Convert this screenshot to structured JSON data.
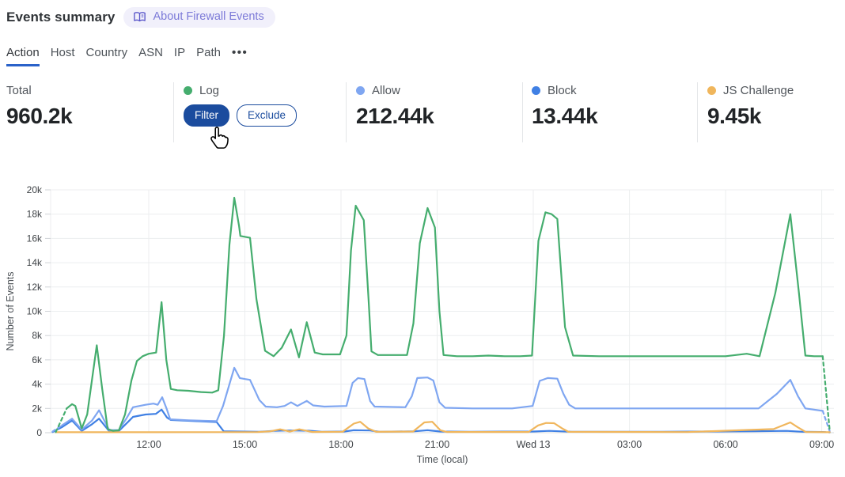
{
  "header": {
    "title": "Events summary",
    "badge": {
      "label": "About Firewall Events",
      "icon": "book-icon"
    }
  },
  "tabs": {
    "items": [
      {
        "label": "Action",
        "active": true
      },
      {
        "label": "Host"
      },
      {
        "label": "Country"
      },
      {
        "label": "ASN"
      },
      {
        "label": "IP"
      },
      {
        "label": "Path"
      },
      {
        "label": "•••"
      }
    ]
  },
  "stats": {
    "total": {
      "label": "Total",
      "value": "960.2k"
    },
    "series": [
      {
        "label": "Log",
        "color": "#45ad6e",
        "filter_label": "Filter",
        "exclude_label": "Exclude"
      },
      {
        "label": "Allow",
        "color": "#7fa6f1",
        "value": "212.44k"
      },
      {
        "label": "Block",
        "color": "#4080e4",
        "value": "13.44k"
      },
      {
        "label": "JS Challenge",
        "color": "#f0b65c",
        "value": "9.45k"
      }
    ]
  },
  "cursor": {
    "icon": "hand-pointer-icon",
    "over": "filter-button"
  },
  "chart_data": {
    "type": "line",
    "title": "",
    "xlabel": "Time (local)",
    "ylabel": "Number of Events",
    "ylim": [
      0,
      20000
    ],
    "grid": true,
    "legend_position": "stats-row-above-chart",
    "x_unit": "hours relative to Wed 13 00:00 (local)",
    "x_domain_hours": [
      -15.06,
      9.38
    ],
    "x_ticks": [
      {
        "h": -12,
        "label": "12:00"
      },
      {
        "h": -9,
        "label": "15:00"
      },
      {
        "h": -6,
        "label": "18:00"
      },
      {
        "h": -3,
        "label": "21:00"
      },
      {
        "h": 0,
        "label": "Wed 13"
      },
      {
        "h": 3,
        "label": "03:00"
      },
      {
        "h": 6,
        "label": "06:00"
      },
      {
        "h": 9,
        "label": "09:00"
      }
    ],
    "y_ticks": [
      {
        "v": 0,
        "label": "0"
      },
      {
        "v": 2000,
        "label": "2k"
      },
      {
        "v": 4000,
        "label": "4k"
      },
      {
        "v": 6000,
        "label": "6k"
      },
      {
        "v": 8000,
        "label": "8k"
      },
      {
        "v": 10000,
        "label": "10k"
      },
      {
        "v": 12000,
        "label": "12k"
      },
      {
        "v": 14000,
        "label": "14k"
      },
      {
        "v": 16000,
        "label": "16k"
      },
      {
        "v": 18000,
        "label": "18k"
      },
      {
        "v": 20000,
        "label": "20k"
      }
    ],
    "series": [
      {
        "name": "Log",
        "color": "#45ad6e",
        "dashed_start": 1,
        "dashed_end": 1,
        "points": [
          [
            -14.9,
            50
          ],
          [
            -14.56,
            2000
          ],
          [
            -14.39,
            2350
          ],
          [
            -14.29,
            2200
          ],
          [
            -14.09,
            350
          ],
          [
            -13.92,
            1500
          ],
          [
            -13.62,
            7200
          ],
          [
            -13.45,
            3600
          ],
          [
            -13.28,
            300
          ],
          [
            -13.11,
            150
          ],
          [
            -12.93,
            200
          ],
          [
            -12.74,
            1500
          ],
          [
            -12.54,
            4300
          ],
          [
            -12.37,
            5900
          ],
          [
            -12.19,
            6300
          ],
          [
            -12.0,
            6500
          ],
          [
            -11.77,
            6600
          ],
          [
            -11.6,
            10750
          ],
          [
            -11.45,
            6000
          ],
          [
            -11.31,
            3600
          ],
          [
            -11.11,
            3500
          ],
          [
            -10.76,
            3450
          ],
          [
            -10.37,
            3350
          ],
          [
            -10.02,
            3300
          ],
          [
            -9.83,
            3500
          ],
          [
            -9.65,
            8000
          ],
          [
            -9.48,
            15500
          ],
          [
            -9.33,
            19350
          ],
          [
            -9.18,
            17000
          ],
          [
            -9.14,
            16200
          ],
          [
            -8.84,
            16050
          ],
          [
            -8.64,
            11000
          ],
          [
            -8.37,
            6750
          ],
          [
            -8.1,
            6300
          ],
          [
            -7.85,
            7000
          ],
          [
            -7.56,
            8500
          ],
          [
            -7.31,
            6200
          ],
          [
            -7.07,
            9100
          ],
          [
            -6.82,
            6600
          ],
          [
            -6.57,
            6450
          ],
          [
            -6.03,
            6450
          ],
          [
            -5.83,
            8000
          ],
          [
            -5.69,
            15000
          ],
          [
            -5.54,
            18700
          ],
          [
            -5.29,
            17500
          ],
          [
            -5.14,
            11000
          ],
          [
            -5.05,
            6700
          ],
          [
            -4.85,
            6400
          ],
          [
            -4.36,
            6400
          ],
          [
            -3.94,
            6400
          ],
          [
            -3.74,
            9000
          ],
          [
            -3.54,
            15600
          ],
          [
            -3.3,
            18500
          ],
          [
            -3.07,
            16900
          ],
          [
            -2.93,
            10000
          ],
          [
            -2.8,
            6400
          ],
          [
            -2.38,
            6300
          ],
          [
            -1.89,
            6300
          ],
          [
            -1.4,
            6350
          ],
          [
            -0.9,
            6300
          ],
          [
            -0.41,
            6300
          ],
          [
            -0.04,
            6350
          ],
          [
            0.16,
            15800
          ],
          [
            0.38,
            18150
          ],
          [
            0.57,
            18000
          ],
          [
            0.75,
            17600
          ],
          [
            0.99,
            8700
          ],
          [
            1.24,
            6350
          ],
          [
            2.05,
            6300
          ],
          [
            3.04,
            6300
          ],
          [
            4.03,
            6300
          ],
          [
            5.01,
            6300
          ],
          [
            6.0,
            6300
          ],
          [
            6.66,
            6500
          ],
          [
            7.06,
            6300
          ],
          [
            7.55,
            11500
          ],
          [
            8.02,
            18000
          ],
          [
            8.29,
            11500
          ],
          [
            8.49,
            6350
          ],
          [
            8.76,
            6300
          ],
          [
            9.03,
            6300
          ],
          [
            9.25,
            150
          ]
        ]
      },
      {
        "name": "Allow",
        "color": "#7fa6f1",
        "dashed_start": 1,
        "dashed_end": 1,
        "points": [
          [
            -15.0,
            100
          ],
          [
            -14.71,
            600
          ],
          [
            -14.39,
            1150
          ],
          [
            -14.09,
            250
          ],
          [
            -13.77,
            1000
          ],
          [
            -13.55,
            1850
          ],
          [
            -13.23,
            200
          ],
          [
            -12.93,
            220
          ],
          [
            -12.69,
            1200
          ],
          [
            -12.49,
            2100
          ],
          [
            -12.1,
            2300
          ],
          [
            -11.85,
            2400
          ],
          [
            -11.72,
            2300
          ],
          [
            -11.58,
            2920
          ],
          [
            -11.43,
            1900
          ],
          [
            -11.33,
            1100
          ],
          [
            -10.76,
            1020
          ],
          [
            -10.27,
            980
          ],
          [
            -9.88,
            950
          ],
          [
            -9.68,
            2200
          ],
          [
            -9.33,
            5350
          ],
          [
            -9.16,
            4500
          ],
          [
            -8.99,
            4420
          ],
          [
            -8.84,
            4350
          ],
          [
            -8.55,
            2700
          ],
          [
            -8.35,
            2150
          ],
          [
            -8.0,
            2100
          ],
          [
            -7.76,
            2200
          ],
          [
            -7.56,
            2500
          ],
          [
            -7.36,
            2200
          ],
          [
            -7.07,
            2620
          ],
          [
            -6.87,
            2250
          ],
          [
            -6.52,
            2150
          ],
          [
            -5.83,
            2200
          ],
          [
            -5.64,
            4100
          ],
          [
            -5.47,
            4500
          ],
          [
            -5.27,
            4420
          ],
          [
            -5.09,
            2600
          ],
          [
            -4.95,
            2150
          ],
          [
            -3.99,
            2100
          ],
          [
            -3.79,
            3000
          ],
          [
            -3.62,
            4500
          ],
          [
            -3.3,
            4550
          ],
          [
            -3.12,
            4300
          ],
          [
            -2.93,
            2500
          ],
          [
            -2.75,
            2050
          ],
          [
            -1.89,
            2000
          ],
          [
            -0.66,
            2000
          ],
          [
            -0.02,
            2200
          ],
          [
            0.2,
            4270
          ],
          [
            0.45,
            4500
          ],
          [
            0.75,
            4450
          ],
          [
            0.94,
            3200
          ],
          [
            1.12,
            2300
          ],
          [
            1.31,
            2000
          ],
          [
            3.04,
            2000
          ],
          [
            5.01,
            2000
          ],
          [
            7.03,
            2000
          ],
          [
            7.6,
            3200
          ],
          [
            8.02,
            4350
          ],
          [
            8.26,
            3000
          ],
          [
            8.49,
            2000
          ],
          [
            9.03,
            1800
          ],
          [
            9.25,
            120
          ]
        ]
      },
      {
        "name": "Block",
        "color": "#4080e4",
        "dashed_start": 1,
        "dashed_end": 1,
        "points": [
          [
            -15.0,
            60
          ],
          [
            -14.71,
            450
          ],
          [
            -14.39,
            1000
          ],
          [
            -14.09,
            150
          ],
          [
            -13.77,
            700
          ],
          [
            -13.55,
            1150
          ],
          [
            -13.23,
            120
          ],
          [
            -12.93,
            150
          ],
          [
            -12.64,
            900
          ],
          [
            -12.49,
            1300
          ],
          [
            -12.1,
            1500
          ],
          [
            -11.78,
            1550
          ],
          [
            -11.6,
            1900
          ],
          [
            -11.43,
            1250
          ],
          [
            -11.31,
            1050
          ],
          [
            -10.52,
            950
          ],
          [
            -9.88,
            880
          ],
          [
            -9.66,
            120
          ],
          [
            -8.55,
            80
          ],
          [
            -8.1,
            150
          ],
          [
            -7.6,
            180
          ],
          [
            -7.0,
            160
          ],
          [
            -6.6,
            80
          ],
          [
            -5.9,
            100
          ],
          [
            -5.6,
            200
          ],
          [
            -5.1,
            180
          ],
          [
            -4.8,
            80
          ],
          [
            -3.7,
            120
          ],
          [
            -3.3,
            200
          ],
          [
            -2.9,
            100
          ],
          [
            -2.0,
            80
          ],
          [
            0.0,
            100
          ],
          [
            0.5,
            150
          ],
          [
            1.2,
            80
          ],
          [
            4.0,
            80
          ],
          [
            6.9,
            120
          ],
          [
            7.9,
            150
          ],
          [
            8.4,
            80
          ],
          [
            9.03,
            60
          ],
          [
            9.25,
            20
          ]
        ]
      },
      {
        "name": "JS Challenge",
        "color": "#f0b65c",
        "dashed_start": 0,
        "dashed_end": 0,
        "points": [
          [
            -14.9,
            40
          ],
          [
            -12.0,
            40
          ],
          [
            -8.6,
            50
          ],
          [
            -8.2,
            120
          ],
          [
            -7.9,
            280
          ],
          [
            -7.6,
            100
          ],
          [
            -7.3,
            280
          ],
          [
            -6.9,
            60
          ],
          [
            -5.95,
            80
          ],
          [
            -5.6,
            750
          ],
          [
            -5.4,
            900
          ],
          [
            -5.15,
            350
          ],
          [
            -4.9,
            70
          ],
          [
            -3.75,
            100
          ],
          [
            -3.4,
            850
          ],
          [
            -3.15,
            900
          ],
          [
            -2.9,
            200
          ],
          [
            -2.7,
            60
          ],
          [
            -0.15,
            60
          ],
          [
            0.15,
            600
          ],
          [
            0.4,
            800
          ],
          [
            0.65,
            780
          ],
          [
            0.9,
            350
          ],
          [
            1.1,
            70
          ],
          [
            4.8,
            50
          ],
          [
            7.5,
            300
          ],
          [
            8.02,
            850
          ],
          [
            8.25,
            450
          ],
          [
            8.5,
            60
          ],
          [
            9.25,
            40
          ]
        ]
      }
    ]
  }
}
